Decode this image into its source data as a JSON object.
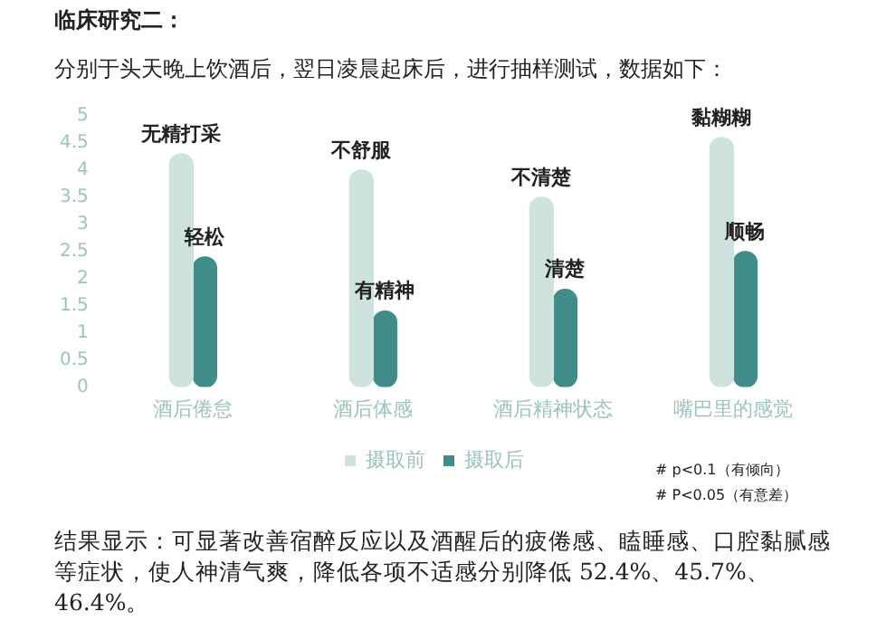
{
  "chart_data": {
    "type": "bar",
    "title": "临床研究二：",
    "subtitle": "分别于头天晚上饮酒后，翌日凌晨起床后，进行抽样测试，数据如下：",
    "categories": [
      "酒后倦怠",
      "酒后体感",
      "酒后精神状态",
      "嘴巴里的感觉"
    ],
    "series": [
      {
        "name": "摄取前",
        "color": "#cfe3de",
        "values": [
          4.3,
          4.0,
          3.5,
          4.6
        ]
      },
      {
        "name": "摄取后",
        "color": "#3f8c88",
        "values": [
          2.4,
          1.4,
          1.8,
          2.5
        ]
      }
    ],
    "ylim": [
      0,
      5
    ],
    "yticks": [
      0,
      0.5,
      1,
      1.5,
      2,
      2.5,
      3,
      3.5,
      4,
      4.5,
      5
    ],
    "grid": false,
    "legend": "bottom",
    "annotations": [
      {
        "text": "无精打采",
        "x": "酒后倦怠",
        "y": 4.3
      },
      {
        "text": "轻松",
        "x": "酒后倦怠",
        "y": 2.4
      },
      {
        "text": "不舒服",
        "x": "酒后体感",
        "y": 4.0
      },
      {
        "text": "有精神",
        "x": "酒后体感",
        "y": 1.4
      },
      {
        "text": "不清楚",
        "x": "酒后精神状态",
        "y": 3.5
      },
      {
        "text": "清楚",
        "x": "酒后精神状态",
        "y": 1.8
      },
      {
        "text": "黏糊糊",
        "x": "嘴巴里的感觉",
        "y": 4.6
      },
      {
        "text": "顺畅",
        "x": "嘴巴里的感觉",
        "y": 2.5
      },
      "#  p<0.1（有倾向）",
      "# P<0.05（有意差）",
      "结果显示：可显著改善宿醉反应以及酒醒后的疲倦感、瞌睡感、口腔黏腻感等症状，使人神清气爽，降低各项不适感分别降低 52.4%、45.7%、46.4%。"
    ]
  }
}
